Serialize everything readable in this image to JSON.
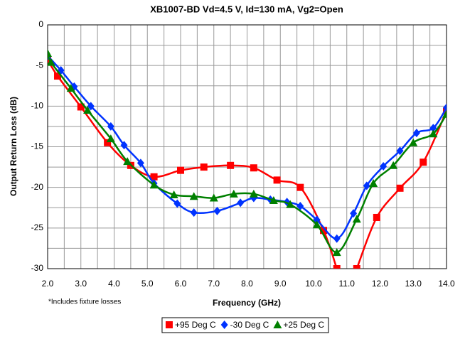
{
  "chart_data": {
    "type": "line",
    "title": "XB1007-BD Vd=4.5 V, Id=130 mA, Vg2=Open",
    "x_label": "Frequency (GHz)",
    "y_label": "Output Return Loss (dB)",
    "annotation": "*Includes fixture losses",
    "xlim": [
      2,
      14
    ],
    "ylim": [
      -30,
      0
    ],
    "xticks": [
      {
        "value": 2,
        "label": "2.0"
      },
      {
        "value": 3,
        "label": "3.0"
      },
      {
        "value": 4,
        "label": "4.0"
      },
      {
        "value": 5,
        "label": "5.0"
      },
      {
        "value": 6,
        "label": "6.0"
      },
      {
        "value": 7,
        "label": "7.0"
      },
      {
        "value": 8,
        "label": "8.0"
      },
      {
        "value": 9,
        "label": "9.0"
      },
      {
        "value": 10,
        "label": "10.0"
      },
      {
        "value": 11,
        "label": "11.0"
      },
      {
        "value": 12,
        "label": "12.0"
      },
      {
        "value": 13,
        "label": "13.0"
      },
      {
        "value": 14,
        "label": "14.0"
      }
    ],
    "yticks": [
      0,
      -5,
      -10,
      -15,
      -20,
      -25,
      -30
    ],
    "grid": true,
    "legend": "bottom",
    "series": [
      {
        "name": "+95 Deg C",
        "color": "#ff0000",
        "marker": "square",
        "x": [
          2.0,
          2.3,
          3.0,
          3.8,
          4.5,
          5.2,
          6.0,
          6.7,
          7.5,
          8.2,
          8.9,
          9.6,
          10.3,
          10.7,
          null,
          11.3,
          11.9,
          12.6,
          13.3,
          14.0
        ],
        "values": [
          -4.3,
          -6.3,
          -10.1,
          -14.5,
          -17.3,
          -18.7,
          -17.9,
          -17.5,
          -17.3,
          -17.6,
          -19.1,
          -20.0,
          -25.3,
          -30.0,
          null,
          -30.0,
          -23.7,
          -20.1,
          -16.9,
          -10.6
        ]
      },
      {
        "name": "-30 Deg C",
        "color": "#0033ff",
        "marker": "diamond",
        "x": [
          2.0,
          2.4,
          2.8,
          3.3,
          3.9,
          4.3,
          4.8,
          5.2,
          5.9,
          6.4,
          7.1,
          7.8,
          8.2,
          8.7,
          9.2,
          9.6,
          10.1,
          10.7,
          11.2,
          11.6,
          12.1,
          12.6,
          13.1,
          13.6,
          14.0
        ],
        "values": [
          -3.8,
          -5.6,
          -7.6,
          -10.0,
          -12.5,
          -14.8,
          -17.0,
          -19.5,
          -22.0,
          -23.1,
          -22.9,
          -21.9,
          -21.3,
          -21.5,
          -21.8,
          -22.3,
          -24.0,
          -26.3,
          -23.2,
          -19.8,
          -17.4,
          -15.5,
          -13.3,
          -12.7,
          -10.2
        ]
      },
      {
        "name": "+25 Deg C",
        "color": "#008000",
        "marker": "triangle",
        "x": [
          2.0,
          2.1,
          2.7,
          3.2,
          3.9,
          4.4,
          5.2,
          5.8,
          6.4,
          7.0,
          7.6,
          8.2,
          8.8,
          9.3,
          10.1,
          10.7,
          11.3,
          11.8,
          12.4,
          13.0,
          13.6,
          14.0
        ],
        "values": [
          -3.5,
          -4.6,
          -7.8,
          -10.5,
          -14.0,
          -16.8,
          -19.7,
          -20.9,
          -21.1,
          -21.3,
          -20.8,
          -20.8,
          -21.6,
          -22.1,
          -24.6,
          -28.0,
          -23.9,
          -19.5,
          -17.3,
          -14.5,
          -13.4,
          -11.0
        ]
      }
    ]
  }
}
